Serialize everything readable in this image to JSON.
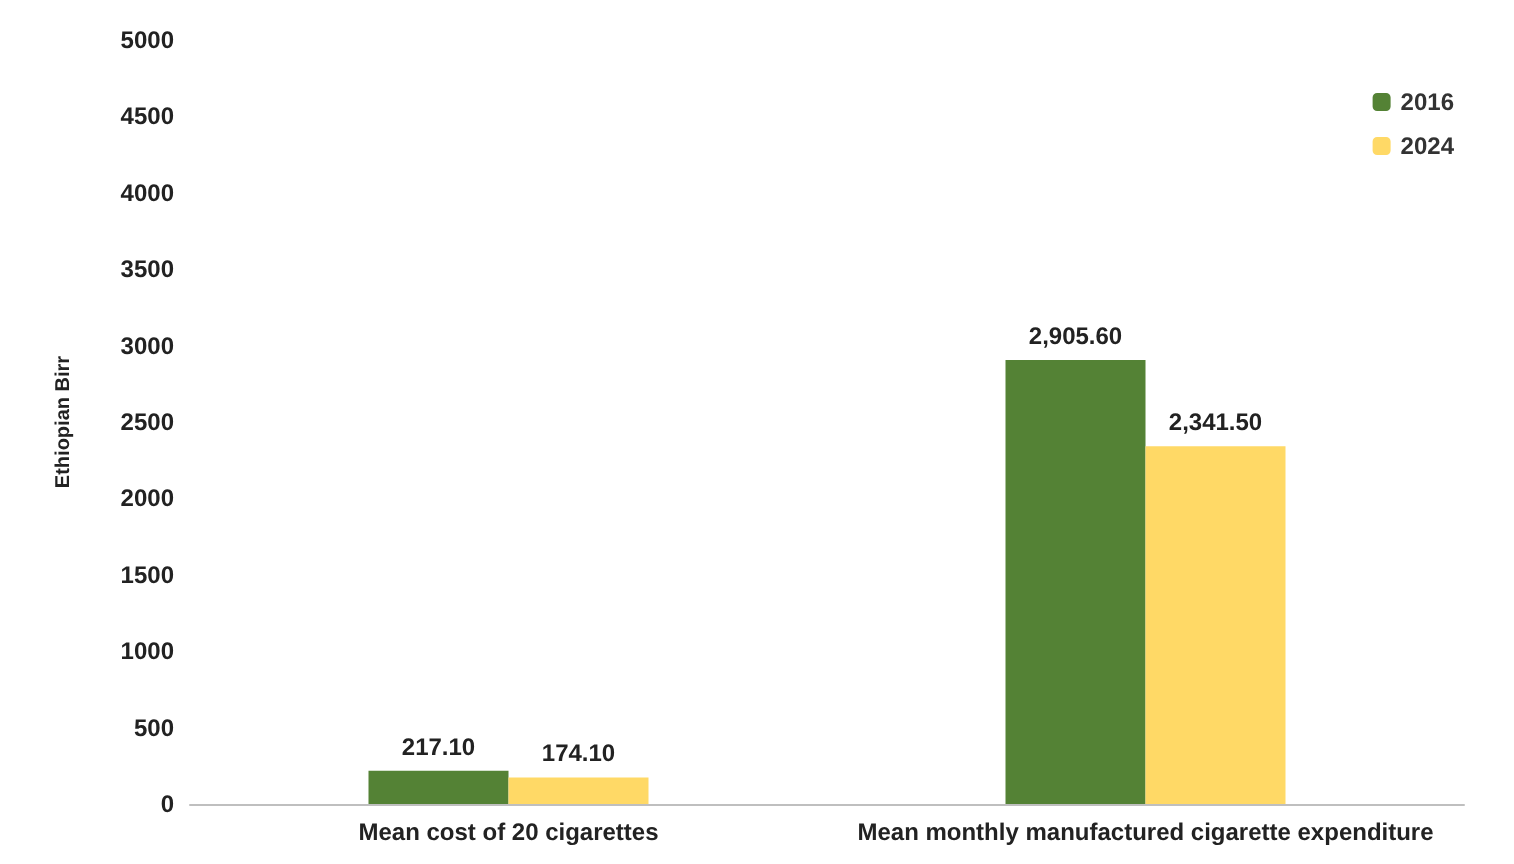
{
  "chart_data": {
    "type": "bar",
    "ylabel": "Ethiopian Birr",
    "categories": [
      "Mean cost of 20 cigarettes",
      "Mean monthly manufactured cigarette expenditure"
    ],
    "series": [
      {
        "name": "2016",
        "color": "#548235",
        "values": [
          217.1,
          2905.6
        ],
        "value_labels": [
          "217.10",
          "2,905.60"
        ]
      },
      {
        "name": "2024",
        "color": "#ffd966",
        "values": [
          174.1,
          2341.5
        ],
        "value_labels": [
          "174.10",
          "2,341.50"
        ]
      }
    ],
    "ylim": [
      0,
      5000
    ],
    "yticks": [
      0,
      500,
      1000,
      1500,
      2000,
      2500,
      3000,
      3500,
      4000,
      4500,
      5000
    ],
    "grid": false,
    "legend": "top right"
  }
}
